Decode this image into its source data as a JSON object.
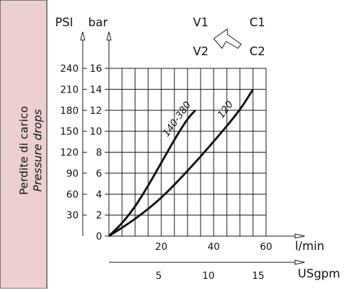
{
  "sidebar": {
    "title": "Perdite di carico",
    "subtitle": "Pressure drops",
    "color": "#ecd0d0"
  },
  "valve_legend": {
    "v1": "V1",
    "v2": "V2",
    "c1": "C1",
    "c2": "C2",
    "arrow_icon": "hollow-arrow-left-icon"
  },
  "chart_data": {
    "type": "line",
    "xlabel": "l/min",
    "x2label": "USgpm",
    "ylabel": "bar",
    "y2label": "PSI",
    "xlim": [
      0,
      60
    ],
    "ylim": [
      0,
      16
    ],
    "grid": true,
    "x_ticks": [
      20,
      40,
      60
    ],
    "x2_ticks": [
      5,
      10,
      15
    ],
    "y_ticks": [
      0,
      2,
      4,
      6,
      8,
      10,
      12,
      14,
      16
    ],
    "y2_ticks": [
      30,
      60,
      90,
      120,
      150,
      180,
      210,
      240
    ],
    "y2_tick_values_bar": [
      2,
      4,
      6,
      8,
      10,
      12,
      14,
      16
    ],
    "x2_tick_values_lmin": [
      19,
      38,
      57
    ],
    "series": [
      {
        "name": "140-380",
        "points": [
          [
            0,
            0
          ],
          [
            5,
            1.2
          ],
          [
            10,
            2.8
          ],
          [
            15,
            4.8
          ],
          [
            20,
            7.0
          ],
          [
            25,
            9.2
          ],
          [
            30,
            11.2
          ],
          [
            33,
            12.0
          ]
        ]
      },
      {
        "name": "120",
        "points": [
          [
            0,
            0
          ],
          [
            10,
            1.6
          ],
          [
            20,
            3.6
          ],
          [
            30,
            6.2
          ],
          [
            40,
            9.0
          ],
          [
            50,
            12.0
          ],
          [
            55,
            14.0
          ]
        ]
      }
    ]
  }
}
